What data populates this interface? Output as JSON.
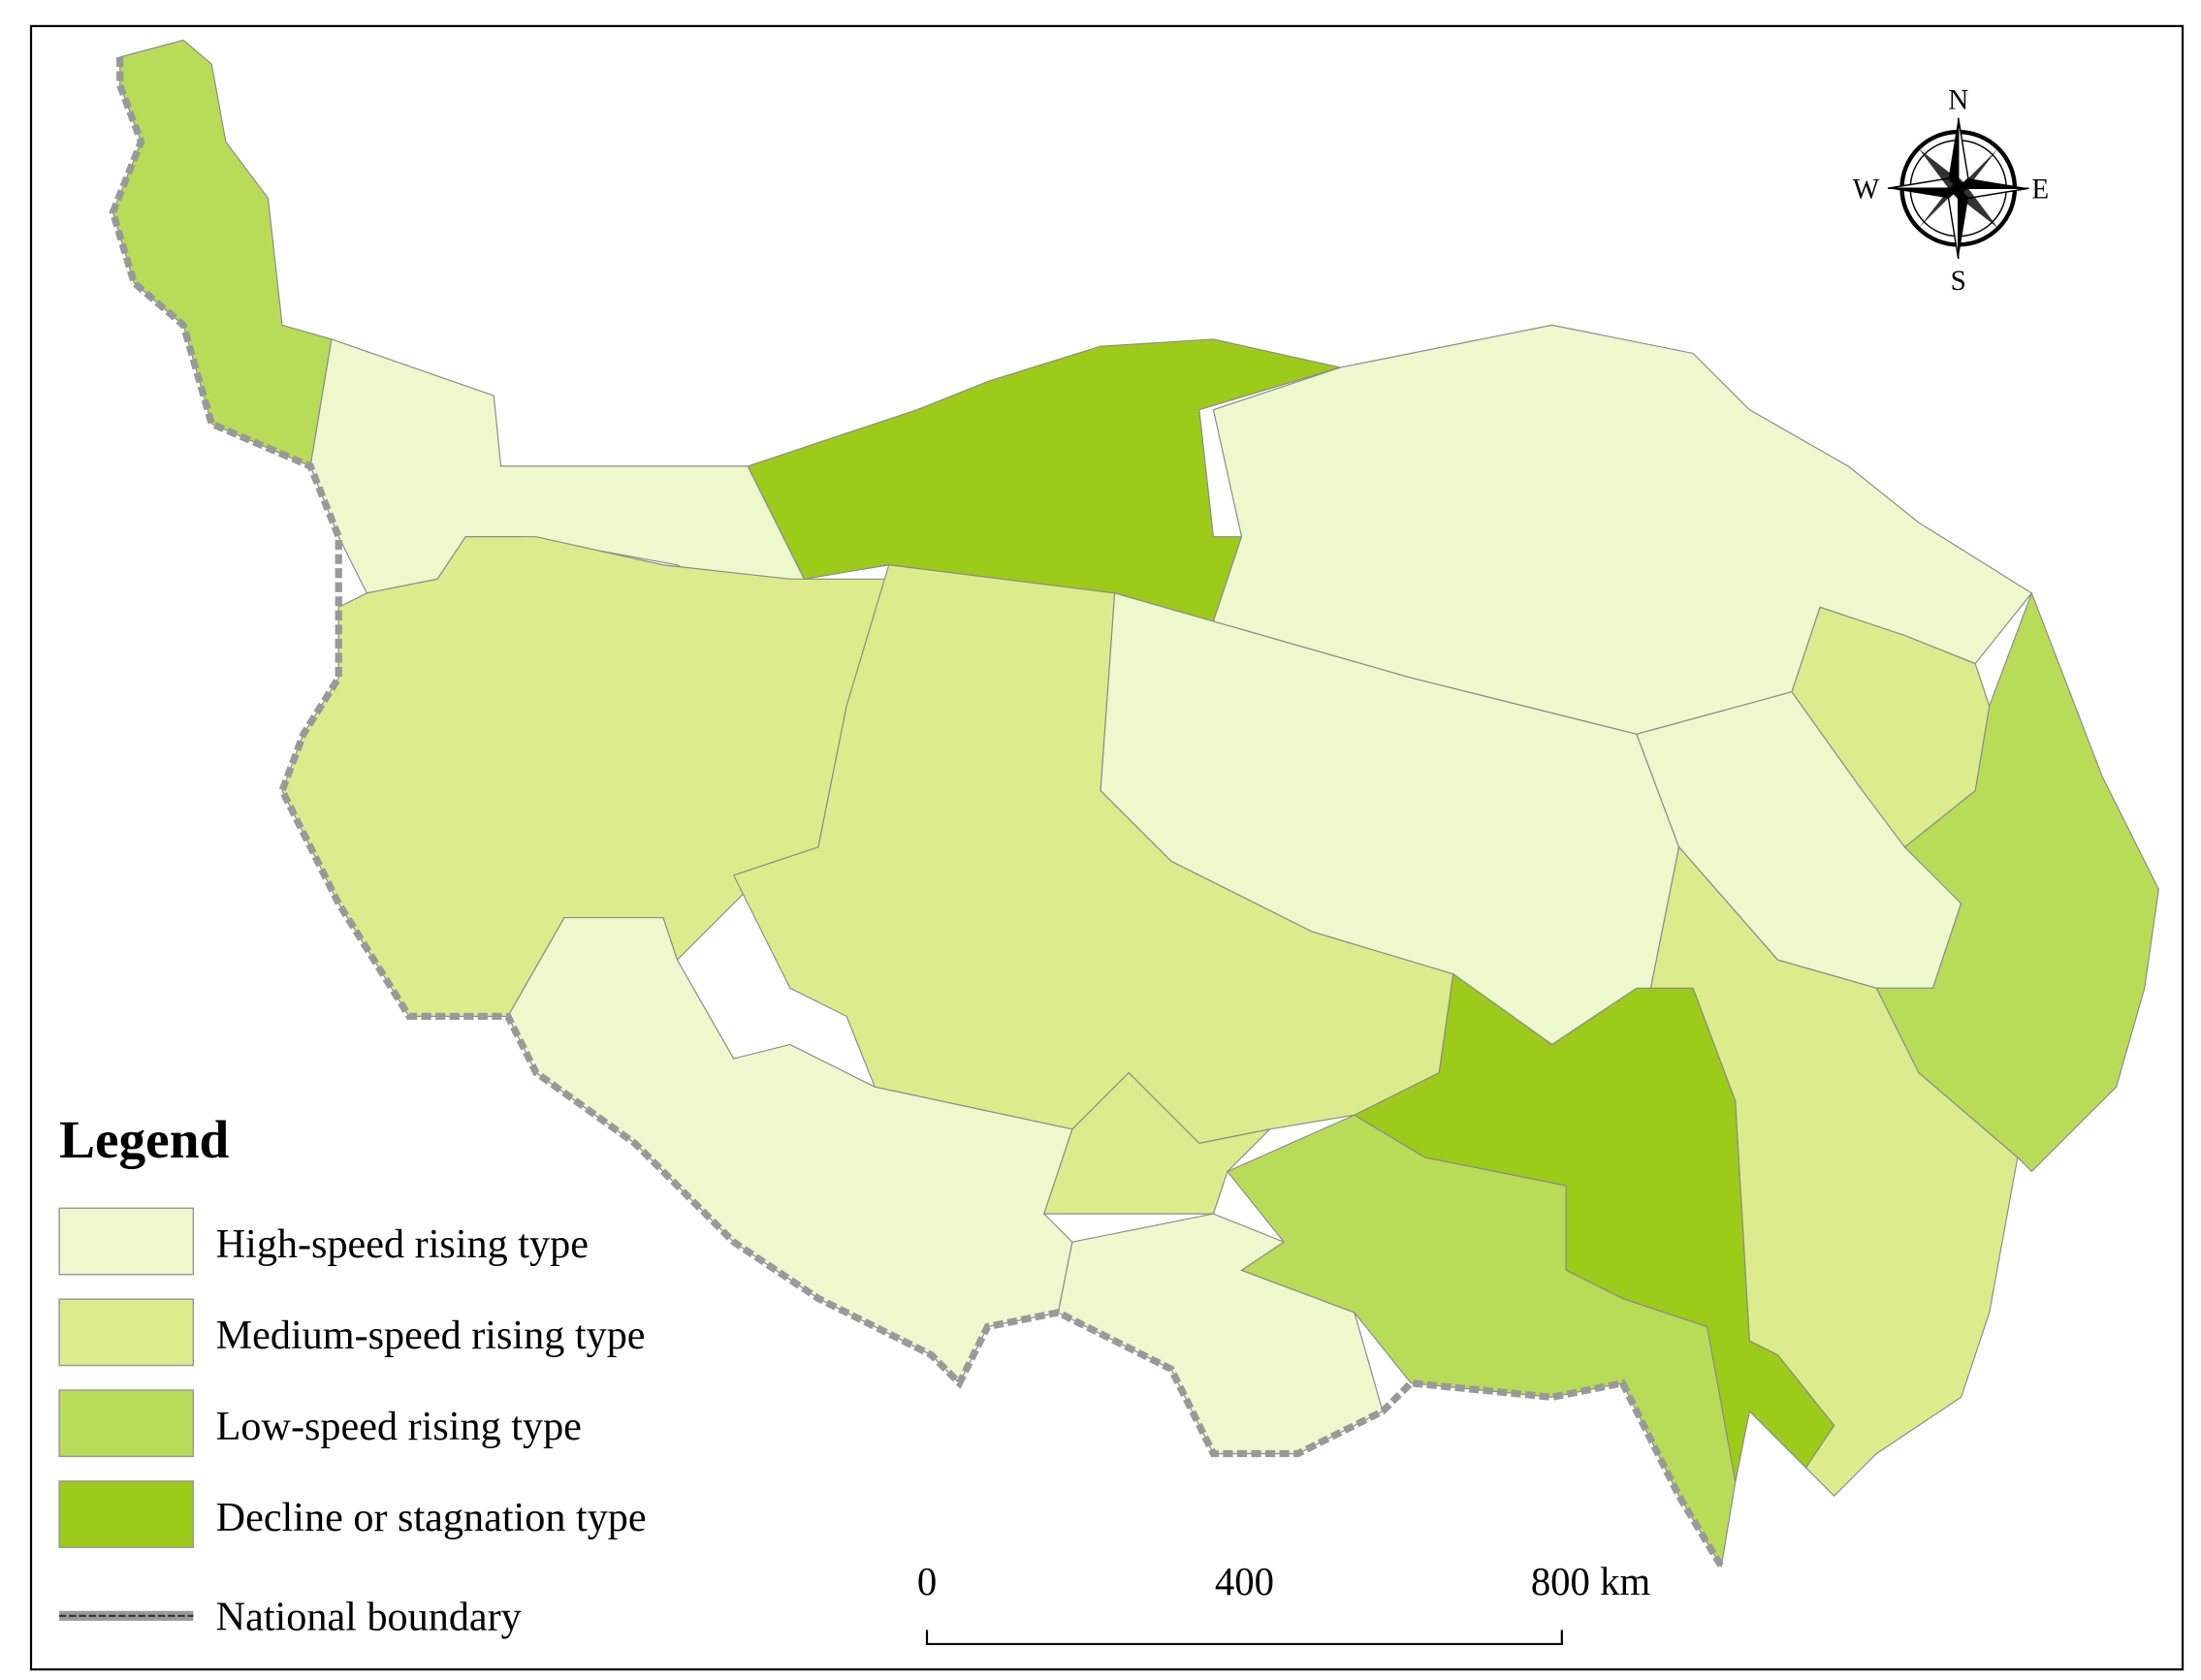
{
  "legend": {
    "title": "Legend",
    "items": [
      {
        "label": "High-speed rising type",
        "color": "#edf8cc"
      },
      {
        "label": "Medium-speed rising type",
        "color": "#dcec8c"
      },
      {
        "label": "Low-speed rising type",
        "color": "#b9dc58"
      },
      {
        "label": "Decline or stagnation type",
        "color": "#9ccb19"
      }
    ],
    "boundary": "National boundary"
  },
  "compass": {
    "north": "N",
    "south": "S",
    "west": "W",
    "east": "E"
  },
  "scale_bar": {
    "labels": [
      "0",
      "400",
      "800 km"
    ]
  }
}
